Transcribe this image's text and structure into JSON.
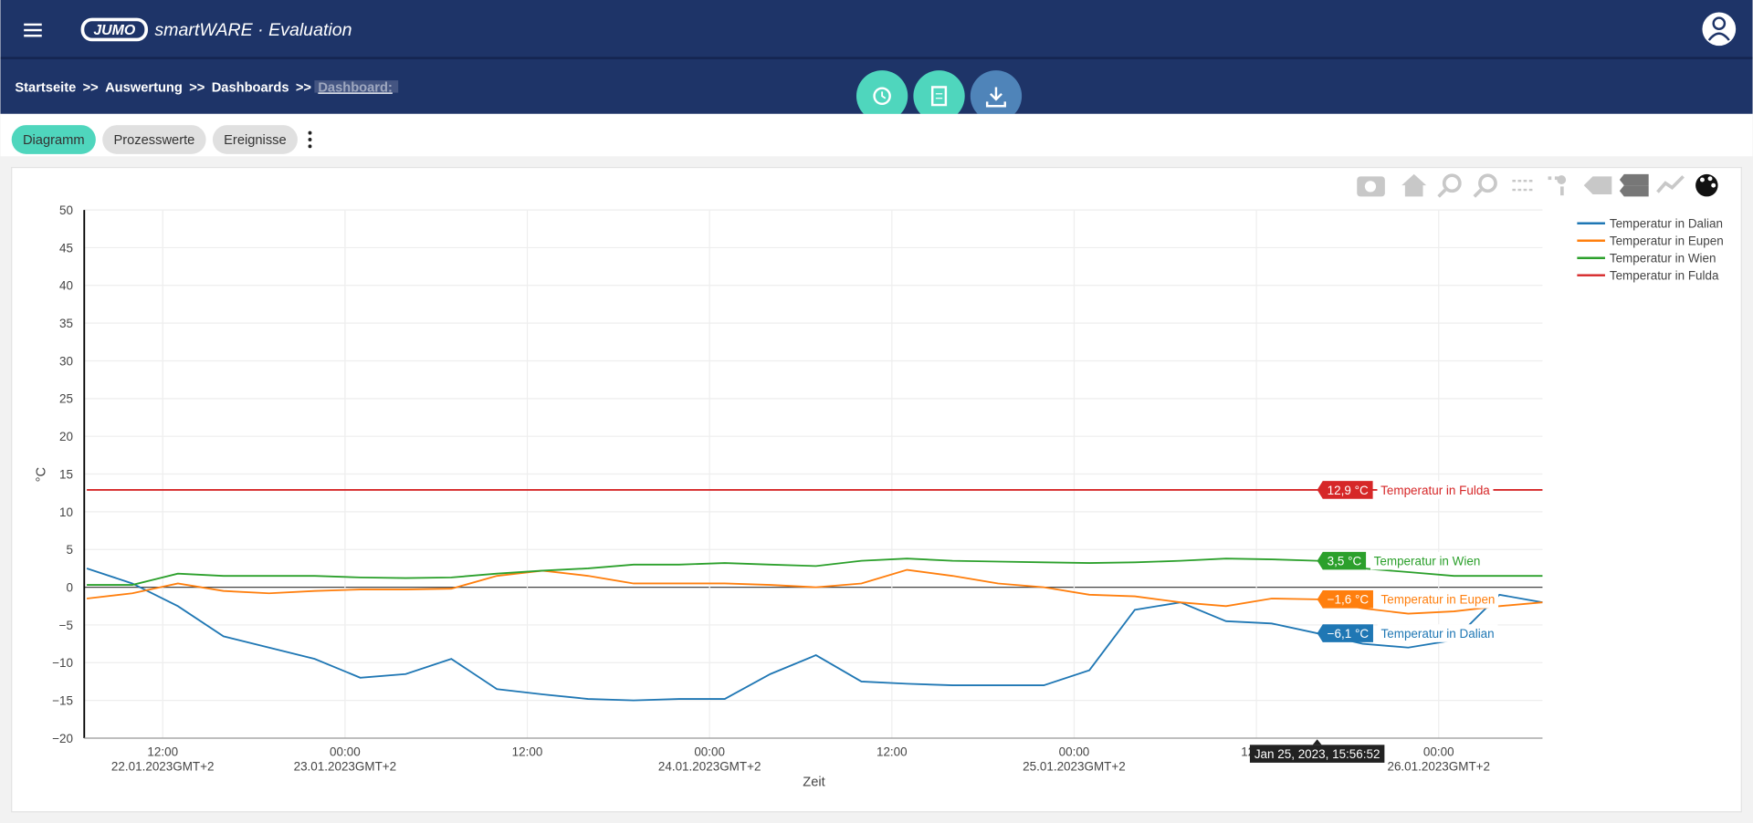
{
  "header": {
    "logo": "JUMO",
    "app_title": "smartWARE · Evaluation"
  },
  "breadcrumbs": {
    "items": [
      "Startseite",
      "Auswertung",
      "Dashboards",
      "Dashboard:"
    ],
    "separator": ">>"
  },
  "tabs": [
    "Diagramm",
    "Prozesswerte",
    "Ereignisse"
  ],
  "chart_data": {
    "type": "line",
    "x_label": "Zeit",
    "y_label": "°C",
    "x": [
      "2023-01-22T07:00",
      "2023-01-22T10:00",
      "2023-01-22T13:00",
      "2023-01-22T16:00",
      "2023-01-22T19:00",
      "2023-01-22T22:00",
      "2023-01-23T01:00",
      "2023-01-23T04:00",
      "2023-01-23T07:00",
      "2023-01-23T10:00",
      "2023-01-23T13:00",
      "2023-01-23T16:00",
      "2023-01-23T19:00",
      "2023-01-23T22:00",
      "2023-01-24T01:00",
      "2023-01-24T04:00",
      "2023-01-24T07:00",
      "2023-01-24T10:00",
      "2023-01-24T13:00",
      "2023-01-24T16:00",
      "2023-01-24T19:00",
      "2023-01-24T22:00",
      "2023-01-25T01:00",
      "2023-01-25T04:00",
      "2023-01-25T07:00",
      "2023-01-25T10:00",
      "2023-01-25T13:00",
      "2023-01-25T16:00",
      "2023-01-25T19:00",
      "2023-01-25T22:00",
      "2023-01-26T01:00",
      "2023-01-26T04:00",
      "2023-01-26T06:50"
    ],
    "xlim": [
      "2023-01-22T06:50",
      "2023-01-26T06:50"
    ],
    "xticks": [
      {
        "value": "2023-01-22T12:00",
        "label": "12:00\n22.01.2023GMT+2"
      },
      {
        "value": "2023-01-23T00:00",
        "label": "00:00\n23.01.2023GMT+2"
      },
      {
        "value": "2023-01-23T12:00",
        "label": "12:00"
      },
      {
        "value": "2023-01-24T00:00",
        "label": "00:00\n24.01.2023GMT+2"
      },
      {
        "value": "2023-01-24T12:00",
        "label": "12:00"
      },
      {
        "value": "2023-01-25T00:00",
        "label": "00:00\n25.01.2023GMT+2"
      },
      {
        "value": "2023-01-25T12:00",
        "label": "12:00"
      },
      {
        "value": "2023-01-26T00:00",
        "label": "00:00\n26.01.2023GMT+2"
      }
    ],
    "ylim": [
      -20,
      50
    ],
    "yticks": [
      {
        "value": -20,
        "label": "−20"
      },
      {
        "value": -15,
        "label": "−15"
      },
      {
        "value": -10,
        "label": "−10"
      },
      {
        "value": -5,
        "label": "−5"
      },
      0,
      5,
      10,
      15,
      20,
      25,
      30,
      35,
      40,
      45,
      50
    ],
    "grid": true,
    "legend": "right",
    "hover_x_label": "Jan 25, 2023, 15:56:52",
    "series": [
      {
        "name": "Temperatur in Dalian",
        "color": "#1f77b4",
        "values": [
          2.5,
          0.5,
          -2.5,
          -6.5,
          -8,
          -9.5,
          -12,
          -11.5,
          -9.5,
          -13.5,
          -14.2,
          -14.8,
          -15,
          -14.8,
          -14.8,
          -11.5,
          -9,
          -12.5,
          -12.8,
          -13,
          -13,
          -13,
          -11,
          -3,
          -2,
          -4.5,
          -4.8,
          -6.1,
          -7.5,
          -8,
          -7,
          -1,
          -2
        ],
        "value_labels": [
          null,
          null,
          null,
          null,
          null,
          null,
          null,
          null,
          null,
          null,
          null,
          null,
          null,
          null,
          null,
          null,
          null,
          null,
          null,
          null,
          null,
          null,
          null,
          null,
          null,
          null,
          null,
          "−6,1 °C",
          null,
          null,
          null,
          null,
          null
        ]
      },
      {
        "name": "Temperatur in Eupen",
        "color": "#ff7f0e",
        "values": [
          -1.5,
          -0.8,
          0.5,
          -0.5,
          -0.8,
          -0.5,
          -0.3,
          -0.3,
          -0.2,
          1.5,
          2.2,
          1.5,
          0.5,
          0.5,
          0.5,
          0.3,
          0,
          0.5,
          2.3,
          1.5,
          0.5,
          0,
          -1,
          -1.2,
          -2,
          -2.5,
          -1.5,
          -1.6,
          -2.8,
          -3.5,
          -3.2,
          -2.5,
          -2
        ],
        "value_labels": [
          null,
          null,
          null,
          null,
          null,
          null,
          null,
          null,
          null,
          null,
          null,
          null,
          null,
          null,
          null,
          null,
          null,
          null,
          null,
          null,
          null,
          null,
          null,
          null,
          null,
          null,
          null,
          "−1,6 °C",
          null,
          null,
          null,
          null,
          null
        ]
      },
      {
        "name": "Temperatur in Wien",
        "color": "#2ca02c",
        "values": [
          0.3,
          0.3,
          1.8,
          1.5,
          1.5,
          1.5,
          1.3,
          1.2,
          1.3,
          1.8,
          2.2,
          2.5,
          3,
          3,
          3.2,
          3,
          2.8,
          3.5,
          3.8,
          3.5,
          3.4,
          3.3,
          3.2,
          3.3,
          3.5,
          3.8,
          3.7,
          3.5,
          2.5,
          2,
          1.5,
          1.5,
          1.5
        ],
        "value_labels": [
          null,
          null,
          null,
          null,
          null,
          null,
          null,
          null,
          null,
          null,
          null,
          null,
          null,
          null,
          null,
          null,
          null,
          null,
          null,
          null,
          null,
          null,
          null,
          null,
          null,
          null,
          null,
          "3,5 °C",
          null,
          null,
          null,
          null,
          null
        ]
      },
      {
        "name": "Temperatur in Fulda",
        "color": "#d62728",
        "values": [
          12.9,
          12.9,
          12.9,
          12.9,
          12.9,
          12.9,
          12.9,
          12.9,
          12.9,
          12.9,
          12.9,
          12.9,
          12.9,
          12.9,
          12.9,
          12.9,
          12.9,
          12.9,
          12.9,
          12.9,
          12.9,
          12.9,
          12.9,
          12.9,
          12.9,
          12.9,
          12.9,
          12.9,
          12.9,
          12.9,
          12.9,
          12.9,
          12.9
        ],
        "value_labels": [
          null,
          null,
          null,
          null,
          null,
          null,
          null,
          null,
          null,
          null,
          null,
          null,
          null,
          null,
          null,
          null,
          null,
          null,
          null,
          null,
          null,
          null,
          null,
          null,
          null,
          null,
          null,
          "12,9 °C",
          null,
          null,
          null,
          null,
          null
        ]
      }
    ]
  }
}
